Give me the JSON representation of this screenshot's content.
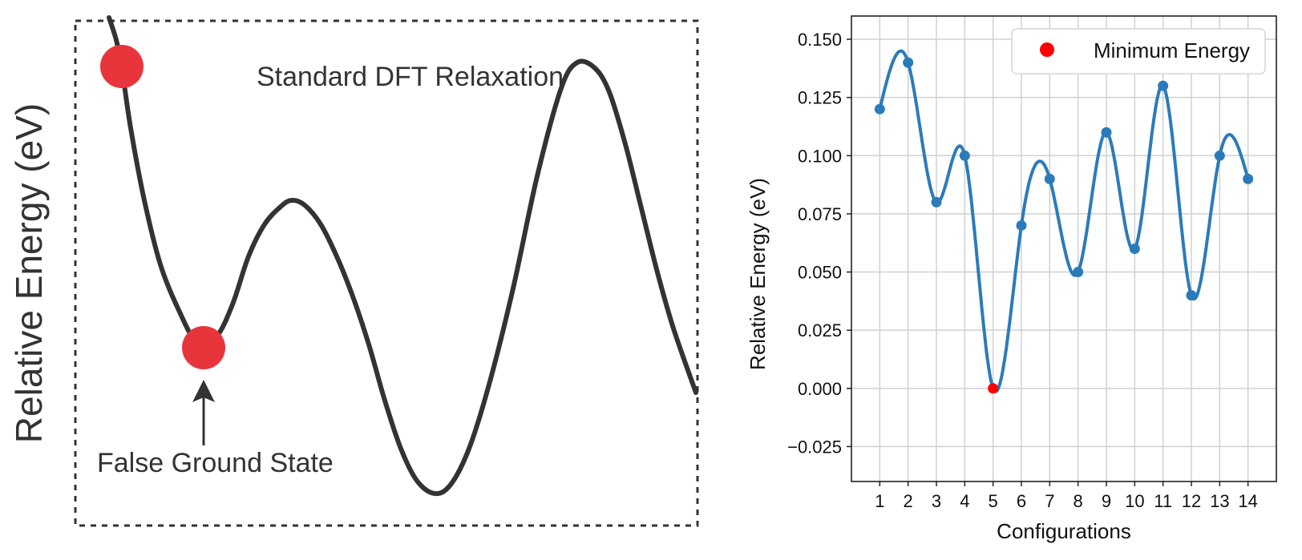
{
  "chart_data": [
    {
      "type": "line",
      "ylabel": "Relative Energy (eV)",
      "title": "",
      "xlabel": "",
      "annotations": {
        "top_label": "Standard DFT Relaxation",
        "arrow_label": "False Ground State"
      },
      "frame": "dashed",
      "line_color": "#333333",
      "marker_color": "#e8353c"
    },
    {
      "type": "line",
      "title": "",
      "xlabel": "Configurations",
      "ylabel": "Relative Energy (eV)",
      "x": [
        1,
        2,
        3,
        4,
        5,
        6,
        7,
        8,
        9,
        10,
        11,
        12,
        13,
        14
      ],
      "xticks": [
        "1",
        "2",
        "3",
        "4",
        "5",
        "6",
        "7",
        "8",
        "9",
        "10",
        "11",
        "12",
        "13",
        "14"
      ],
      "values": [
        0.12,
        0.14,
        0.08,
        0.1,
        0.0,
        0.07,
        0.09,
        0.05,
        0.11,
        0.06,
        0.13,
        0.04,
        0.1,
        0.09
      ],
      "yticks": [
        "0.150",
        "0.125",
        "0.100",
        "0.075",
        "0.050",
        "0.025",
        "0.000",
        "−0.025"
      ],
      "ytick_values": [
        0.15,
        0.125,
        0.1,
        0.075,
        0.05,
        0.025,
        0.0,
        -0.025
      ],
      "ylim": [
        -0.04,
        0.16
      ],
      "xlim": [
        0,
        15
      ],
      "grid": true,
      "legend": {
        "entry": "Minimum Energy",
        "placement": "top-right"
      },
      "min_index": 4,
      "line_color": "#2b7bba",
      "min_marker_color": "#ff0000"
    }
  ]
}
